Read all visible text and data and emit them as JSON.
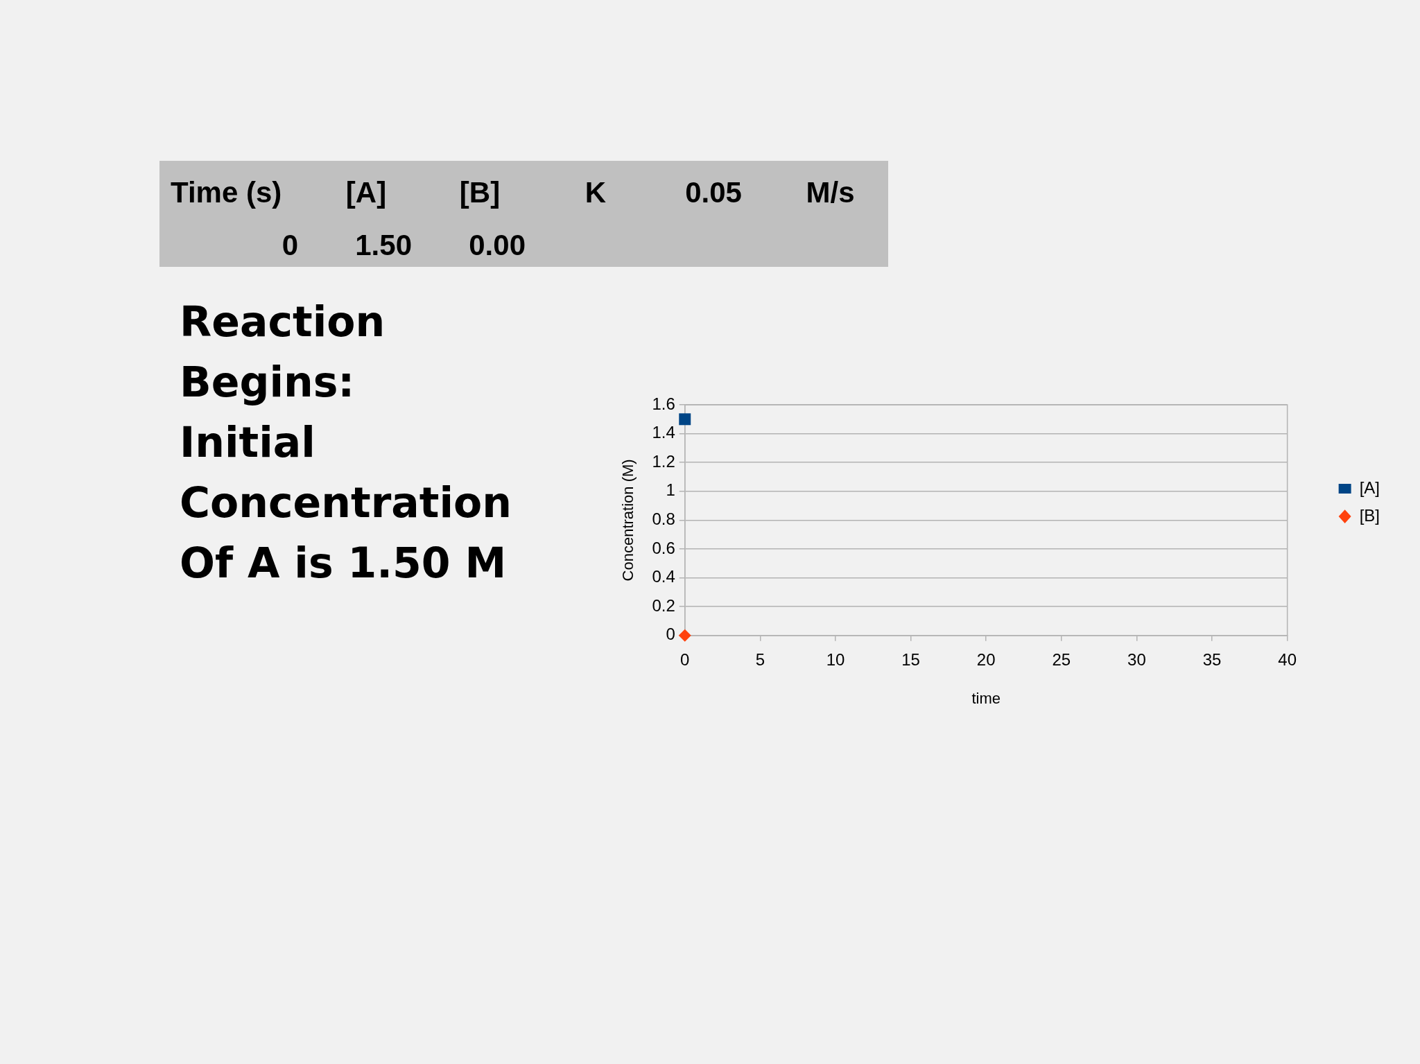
{
  "chart_data": {
    "type": "scatter",
    "title": "Reaction\nBegins:\nInitial\nConcentration\nOf A is 1.50 M",
    "xlabel": "time",
    "ylabel": "Concentration (M)",
    "x": [
      0
    ],
    "series": [
      {
        "name": "[A]",
        "color": "#004586",
        "marker": "square",
        "values": [
          1.5
        ]
      },
      {
        "name": "[B]",
        "color": "#ff420e",
        "marker": "diamond",
        "values": [
          0
        ]
      }
    ],
    "xlim": [
      0,
      40
    ],
    "xticks": [
      0,
      5,
      10,
      15,
      20,
      25,
      30,
      35,
      40
    ],
    "ylim": [
      0,
      1.6
    ],
    "yticks": [
      0,
      0.2,
      0.4,
      0.6,
      0.8,
      1,
      1.2,
      1.4,
      1.6
    ],
    "grid": "y",
    "legend": "right",
    "annotations": [
      "Time (s)",
      "[A]",
      "[B]",
      "K",
      "0.05",
      "M/s",
      "0",
      "1.50",
      "0.00"
    ]
  }
}
